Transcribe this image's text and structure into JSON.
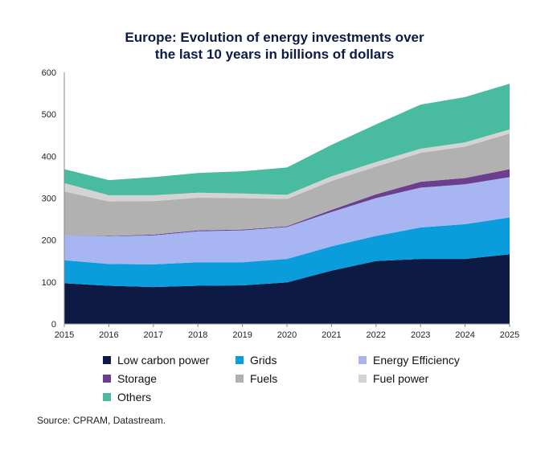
{
  "chart_data": {
    "type": "area",
    "stacked": true,
    "title_line1": "Europe: Evolution of energy investments over",
    "title_line2": "the last 10 years in billions of dollars",
    "x": [
      2015,
      2016,
      2017,
      2018,
      2019,
      2020,
      2021,
      2022,
      2023,
      2024,
      2025
    ],
    "x_tick_labels": [
      "2015",
      "2016",
      "2017",
      "2018",
      "2019",
      "2020",
      "2021",
      "2022",
      "2023",
      "2024",
      "2025"
    ],
    "y_tick_labels": [
      "0",
      "100",
      "200",
      "300",
      "400",
      "500",
      "600"
    ],
    "y_ticks": [
      0,
      100,
      200,
      300,
      400,
      500,
      600
    ],
    "ylim": [
      0,
      600
    ],
    "xlabel": "",
    "ylabel": "",
    "grid": false,
    "legend_position": "bottom",
    "series": [
      {
        "name": "Low carbon power",
        "color": "#0c1a44",
        "values": [
          97,
          91,
          88,
          91,
          92,
          99,
          127,
          150,
          155,
          155,
          166
        ]
      },
      {
        "name": "Grids",
        "color": "#0b9cdc",
        "values": [
          55,
          52,
          54,
          56,
          55,
          56,
          58,
          60,
          75,
          83,
          88
        ]
      },
      {
        "name": "Energy Efficiency",
        "color": "#a7b6f2",
        "values": [
          59,
          66,
          69,
          74,
          76,
          76,
          82,
          90,
          95,
          95,
          96
        ]
      },
      {
        "name": "Storage",
        "color": "#6b3f8e",
        "values": [
          0,
          1,
          2,
          2,
          2,
          2,
          5,
          9,
          14,
          15,
          19
        ]
      },
      {
        "name": "Fuels",
        "color": "#b1b1b1",
        "values": [
          105,
          82,
          80,
          78,
          75,
          65,
          69,
          66,
          69,
          75,
          85
        ]
      },
      {
        "name": "Fuel power",
        "color": "#d3d3d3",
        "values": [
          20,
          15,
          14,
          12,
          11,
          10,
          11,
          11,
          10,
          10,
          10
        ]
      },
      {
        "name": "Others",
        "color": "#49bba1",
        "values": [
          33,
          36,
          43,
          47,
          53,
          65,
          75,
          90,
          105,
          108,
          109
        ]
      }
    ]
  },
  "source": "Source: CPRAM, Datastream."
}
